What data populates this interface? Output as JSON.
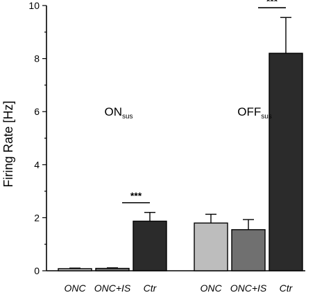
{
  "chart_data": {
    "type": "bar",
    "title": "",
    "ylabel": "Firing Rate [Hz]",
    "xlabel": "",
    "ylim": [
      0,
      10
    ],
    "yticks": [
      0,
      2,
      4,
      6,
      8,
      10
    ],
    "groups": [
      {
        "label_main": "ON",
        "label_sub": "sus",
        "bars": [
          {
            "category": "ONC",
            "value": 0.08,
            "error": 0.02,
            "color": "#bdbdbd"
          },
          {
            "category": "ONC+IS",
            "value": 0.09,
            "error": 0.02,
            "color": "#707070"
          },
          {
            "category": "Ctr",
            "value": 1.87,
            "error": 0.33,
            "color": "#2b2b2b"
          }
        ],
        "significance": {
          "label": "***"
        }
      },
      {
        "label_main": "OFF",
        "label_sub": "sus",
        "bars": [
          {
            "category": "ONC",
            "value": 1.8,
            "error": 0.33,
            "color": "#bdbdbd"
          },
          {
            "category": "ONC+IS",
            "value": 1.55,
            "error": 0.38,
            "color": "#707070"
          },
          {
            "category": "Ctr",
            "value": 8.2,
            "error": 1.35,
            "color": "#2b2b2b"
          }
        ],
        "significance": {
          "label": "***"
        }
      }
    ]
  }
}
